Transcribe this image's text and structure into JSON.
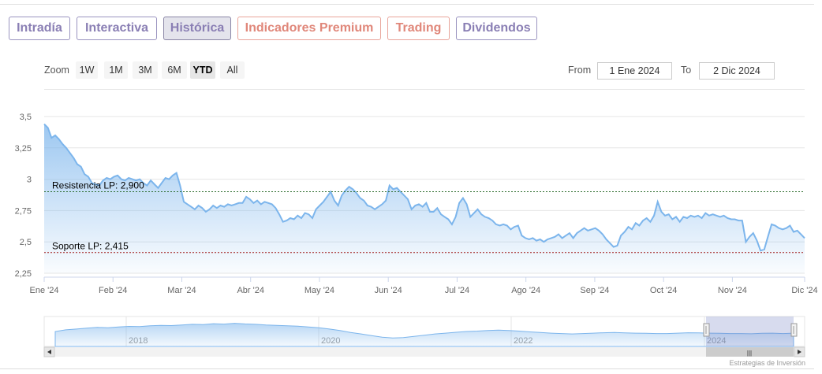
{
  "tabs": {
    "intradia": "Intradía",
    "interactiva": "Interactiva",
    "historica": "Histórica",
    "premium": "Indicadores Premium",
    "trading": "Trading",
    "dividendos": "Dividendos"
  },
  "zoom": {
    "label": "Zoom",
    "options": [
      "1W",
      "1M",
      "3M",
      "6M",
      "YTD",
      "All"
    ],
    "selected": "YTD"
  },
  "range": {
    "from_label": "From",
    "from_value": "1 Ene 2024",
    "to_label": "To",
    "to_value": "2 Dic 2024"
  },
  "colors": {
    "line": "#7cb5ec",
    "resistance": "#2b6b2b",
    "support": "#a01818",
    "tab_accent": "#8a7fb4",
    "tab_premium": "#e0877a"
  },
  "chart_data": {
    "type": "area",
    "ylim": [
      2.25,
      3.5
    ],
    "y_ticks": [
      "3,5",
      "3,25",
      "3",
      "2,75",
      "2,5",
      "2,25"
    ],
    "x_ticks": [
      "Ene '24",
      "Feb '24",
      "Mar '24",
      "Abr '24",
      "May '24",
      "Jun '24",
      "Jul '24",
      "Ago '24",
      "Sep '24",
      "Oct '24",
      "Nov '24",
      "Dic '24"
    ],
    "x_month_index": [
      0,
      1,
      2,
      3,
      4,
      5,
      6,
      7,
      8,
      9,
      10,
      11.05
    ],
    "y_values": [
      3.44,
      3.41,
      3.33,
      3.35,
      3.32,
      3.28,
      3.25,
      3.21,
      3.17,
      3.12,
      3.1,
      3.04,
      3.02,
      2.97,
      2.96,
      2.95,
      2.99,
      3.01,
      3.0,
      3.02,
      3.03,
      3.0,
      2.99,
      3.01,
      3.0,
      2.99,
      3.0,
      2.97,
      2.95,
      2.99,
      2.96,
      2.93,
      2.97,
      3.01,
      3.0,
      3.03,
      3.05,
      2.95,
      2.82,
      2.8,
      2.78,
      2.76,
      2.79,
      2.77,
      2.74,
      2.76,
      2.79,
      2.77,
      2.79,
      2.78,
      2.8,
      2.79,
      2.8,
      2.81,
      2.81,
      2.86,
      2.84,
      2.81,
      2.83,
      2.8,
      2.82,
      2.81,
      2.8,
      2.77,
      2.72,
      2.66,
      2.67,
      2.69,
      2.68,
      2.71,
      2.69,
      2.73,
      2.72,
      2.69,
      2.76,
      2.79,
      2.82,
      2.86,
      2.9,
      2.83,
      2.79,
      2.87,
      2.91,
      2.94,
      2.92,
      2.89,
      2.85,
      2.83,
      2.79,
      2.78,
      2.76,
      2.78,
      2.8,
      2.83,
      2.95,
      2.92,
      2.93,
      2.9,
      2.87,
      2.84,
      2.76,
      2.79,
      2.8,
      2.78,
      2.81,
      2.74,
      2.74,
      2.77,
      2.72,
      2.7,
      2.68,
      2.64,
      2.7,
      2.81,
      2.85,
      2.8,
      2.7,
      2.73,
      2.76,
      2.72,
      2.7,
      2.69,
      2.67,
      2.64,
      2.63,
      2.64,
      2.63,
      2.6,
      2.62,
      2.63,
      2.55,
      2.53,
      2.52,
      2.53,
      2.51,
      2.52,
      2.5,
      2.52,
      2.53,
      2.54,
      2.56,
      2.53,
      2.55,
      2.57,
      2.53,
      2.57,
      2.59,
      2.61,
      2.59,
      2.6,
      2.61,
      2.59,
      2.56,
      2.52,
      2.49,
      2.46,
      2.47,
      2.55,
      2.58,
      2.62,
      2.6,
      2.65,
      2.63,
      2.67,
      2.69,
      2.66,
      2.71,
      2.82,
      2.74,
      2.71,
      2.72,
      2.68,
      2.7,
      2.66,
      2.7,
      2.69,
      2.71,
      2.7,
      2.71,
      2.69,
      2.73,
      2.71,
      2.72,
      2.71,
      2.7,
      2.71,
      2.69,
      2.68,
      2.68,
      2.67,
      2.67,
      2.5,
      2.54,
      2.57,
      2.51,
      2.43,
      2.44,
      2.54,
      2.64,
      2.63,
      2.61,
      2.6,
      2.61,
      2.63,
      2.58,
      2.59,
      2.56,
      2.53
    ],
    "resistance": {
      "label": "Resistencia LP: 2,900",
      "value": 2.9
    },
    "support": {
      "label": "Soporte LP: 2,415",
      "value": 2.415
    },
    "navigator": {
      "years": [
        "2018",
        "2020",
        "2022",
        "2024"
      ],
      "profile": [
        0.5,
        0.58,
        0.62,
        0.66,
        0.7,
        0.68,
        0.72,
        0.75,
        0.74,
        0.78,
        0.8,
        0.79,
        0.82,
        0.85,
        0.84,
        0.88,
        0.86,
        0.9,
        0.87,
        0.85,
        0.82,
        0.8,
        0.78,
        0.76,
        0.72,
        0.68,
        0.62,
        0.55,
        0.45,
        0.38,
        0.3,
        0.22,
        0.18,
        0.2,
        0.26,
        0.32,
        0.38,
        0.42,
        0.46,
        0.5,
        0.52,
        0.55,
        0.57,
        0.55,
        0.52,
        0.48,
        0.45,
        0.42,
        0.4,
        0.38,
        0.4,
        0.42,
        0.44,
        0.45,
        0.43,
        0.42,
        0.41,
        0.4,
        0.4,
        0.42,
        0.44,
        0.43,
        0.42,
        0.41,
        0.4,
        0.4,
        0.39,
        0.41,
        0.42,
        0.4,
        0.42
      ],
      "grip": "|||"
    }
  },
  "credit": "Estrategias de Inversión"
}
